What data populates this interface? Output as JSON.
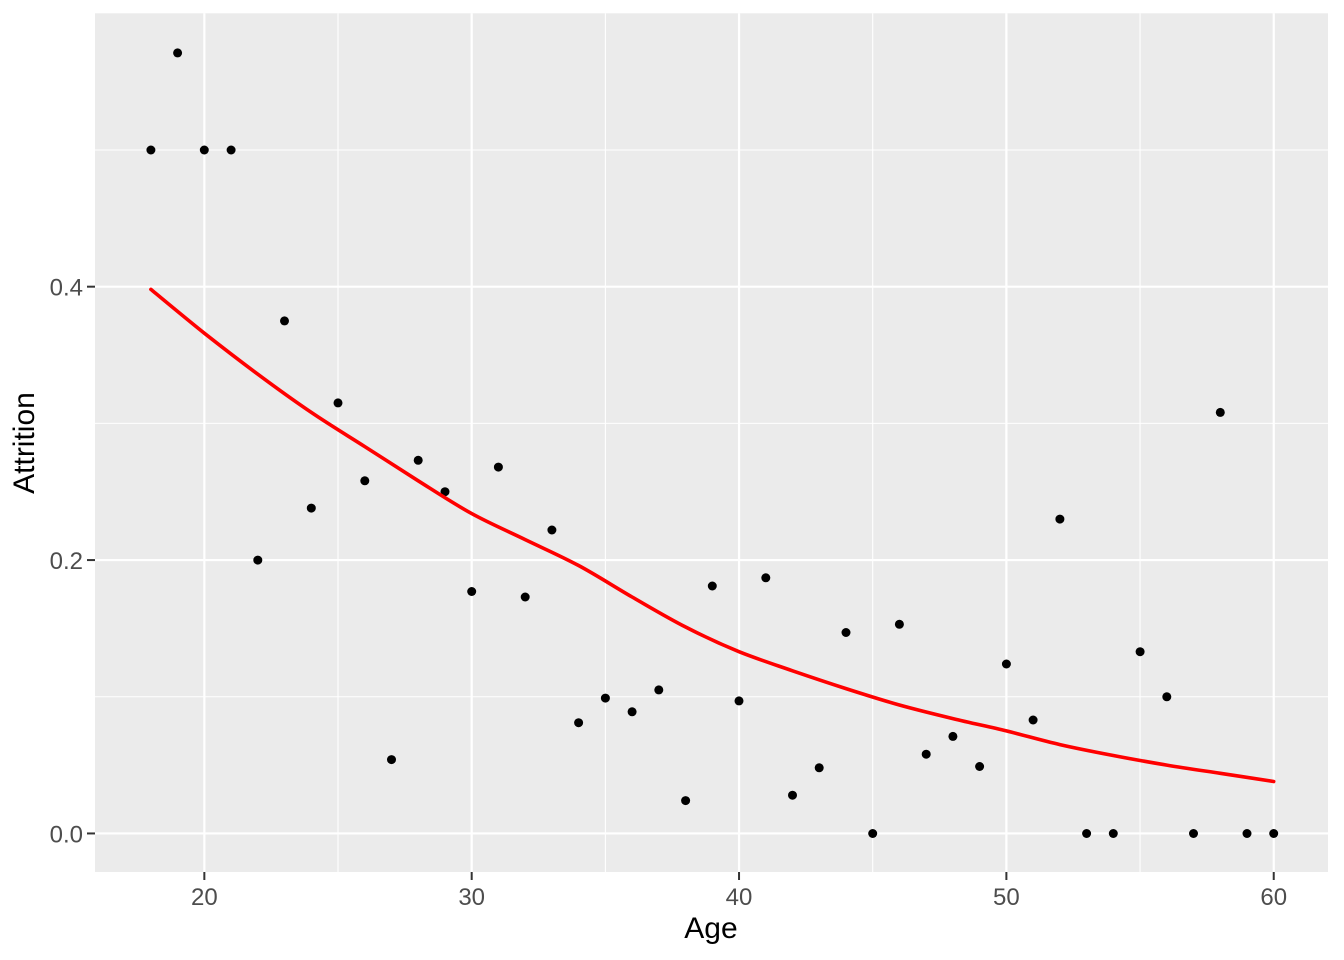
{
  "figure": {
    "title": "",
    "x_axis_title": "Age",
    "y_axis_title": "Attrition"
  },
  "chart_data": {
    "type": "scatter",
    "title": "",
    "xlabel": "Age",
    "ylabel": "Attrition",
    "xlim": [
      15.91,
      62.03
    ],
    "ylim": [
      -0.0282,
      0.6
    ],
    "grid": true,
    "legend": false,
    "x_ticks": [
      20,
      30,
      40,
      50,
      60
    ],
    "x_tick_labels": [
      "20",
      "30",
      "40",
      "50",
      "60"
    ],
    "x_minor_ticks": [
      25,
      35,
      45,
      55
    ],
    "y_ticks": [
      0.0,
      0.2,
      0.4
    ],
    "y_tick_labels": [
      "0.0",
      "0.2",
      "0.4"
    ],
    "y_minor_ticks": [
      0.1,
      0.3,
      0.5
    ],
    "series": [
      {
        "name": "attrition-rate-by-age",
        "type": "scatter",
        "marker": "circle",
        "color": "#000000",
        "points": [
          [
            18,
            0.5
          ],
          [
            19,
            0.571
          ],
          [
            20,
            0.5
          ],
          [
            21,
            0.5
          ],
          [
            22,
            0.2
          ],
          [
            23,
            0.375
          ],
          [
            24,
            0.238
          ],
          [
            25,
            0.315
          ],
          [
            26,
            0.258
          ],
          [
            27,
            0.054
          ],
          [
            28,
            0.273
          ],
          [
            29,
            0.25
          ],
          [
            30,
            0.177
          ],
          [
            31,
            0.268
          ],
          [
            32,
            0.173
          ],
          [
            33,
            0.222
          ],
          [
            34,
            0.081
          ],
          [
            35,
            0.099
          ],
          [
            36,
            0.089
          ],
          [
            37,
            0.105
          ],
          [
            38,
            0.024
          ],
          [
            39,
            0.181
          ],
          [
            40,
            0.097
          ],
          [
            41,
            0.187
          ],
          [
            42,
            0.028
          ],
          [
            43,
            0.048
          ],
          [
            44,
            0.147
          ],
          [
            45,
            0.0
          ],
          [
            46,
            0.153
          ],
          [
            47,
            0.058
          ],
          [
            48,
            0.071
          ],
          [
            49,
            0.049
          ],
          [
            50,
            0.124
          ],
          [
            51,
            0.083
          ],
          [
            52,
            0.23
          ],
          [
            53,
            0.0
          ],
          [
            54,
            0.0
          ],
          [
            55,
            0.133
          ],
          [
            56,
            0.1
          ],
          [
            57,
            0.0
          ],
          [
            58,
            0.308
          ],
          [
            59,
            0.0
          ],
          [
            60,
            0.0
          ]
        ]
      },
      {
        "name": "smooth-fit-line",
        "type": "line",
        "color": "#FF0000",
        "points": [
          [
            18,
            0.398
          ],
          [
            20,
            0.366
          ],
          [
            22,
            0.336
          ],
          [
            24,
            0.308
          ],
          [
            26,
            0.283
          ],
          [
            28,
            0.258
          ],
          [
            30,
            0.234
          ],
          [
            32,
            0.215
          ],
          [
            34,
            0.196
          ],
          [
            36,
            0.173
          ],
          [
            38,
            0.151
          ],
          [
            40,
            0.133
          ],
          [
            42,
            0.119
          ],
          [
            44,
            0.106
          ],
          [
            46,
            0.094
          ],
          [
            48,
            0.084
          ],
          [
            50,
            0.075
          ],
          [
            52,
            0.065
          ],
          [
            54,
            0.057
          ],
          [
            56,
            0.05
          ],
          [
            58,
            0.044
          ],
          [
            60,
            0.038
          ]
        ]
      }
    ],
    "colors": {
      "panel_background": "#EBEBEB",
      "gridline": "#FFFFFF",
      "point": "#000000",
      "smooth_line": "#FF0000",
      "tick_mark": "#333333",
      "tick_label": "#4D4D4D",
      "axis_title": "#000000",
      "figure_background": "#FFFFFF"
    }
  }
}
